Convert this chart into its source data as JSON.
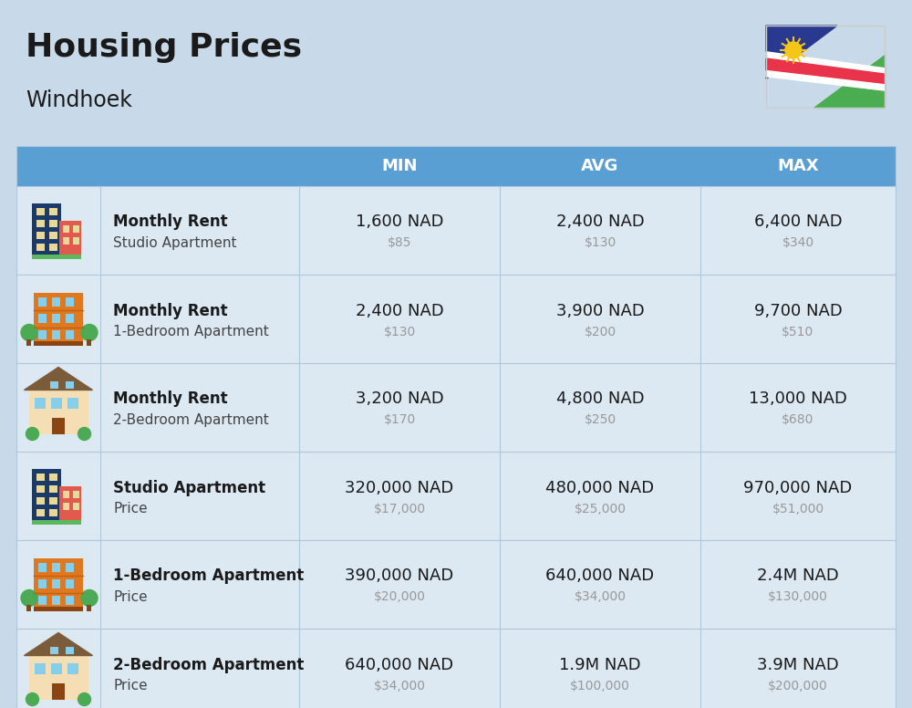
{
  "title": "Housing Prices",
  "subtitle": "Windhoek",
  "background_color": "#c8daea",
  "header_color": "#5a9fd4",
  "header_text_color": "#ffffff",
  "row_bg_light": "#dce8f2",
  "row_bg_white": "#ffffff",
  "divider_color": "#b0c8dc",
  "rows": [
    {
      "icon": "blue_red_building",
      "label_bold": "Monthly Rent",
      "label_sub": "Studio Apartment",
      "min_nad": "1,600 NAD",
      "min_usd": "$85",
      "avg_nad": "2,400 NAD",
      "avg_usd": "$130",
      "max_nad": "6,400 NAD",
      "max_usd": "$340"
    },
    {
      "icon": "orange_building",
      "label_bold": "Monthly Rent",
      "label_sub": "1-Bedroom Apartment",
      "min_nad": "2,400 NAD",
      "min_usd": "$130",
      "avg_nad": "3,900 NAD",
      "avg_usd": "$200",
      "max_nad": "9,700 NAD",
      "max_usd": "$510"
    },
    {
      "icon": "house_building",
      "label_bold": "Monthly Rent",
      "label_sub": "2-Bedroom Apartment",
      "min_nad": "3,200 NAD",
      "min_usd": "$170",
      "avg_nad": "4,800 NAD",
      "avg_usd": "$250",
      "max_nad": "13,000 NAD",
      "max_usd": "$680"
    },
    {
      "icon": "blue_red_building",
      "label_bold": "Studio Apartment",
      "label_sub": "Price",
      "min_nad": "320,000 NAD",
      "min_usd": "$17,000",
      "avg_nad": "480,000 NAD",
      "avg_usd": "$25,000",
      "max_nad": "970,000 NAD",
      "max_usd": "$51,000"
    },
    {
      "icon": "orange_building",
      "label_bold": "1-Bedroom Apartment",
      "label_sub": "Price",
      "min_nad": "390,000 NAD",
      "min_usd": "$20,000",
      "avg_nad": "640,000 NAD",
      "avg_usd": "$34,000",
      "max_nad": "2.4M NAD",
      "max_usd": "$130,000"
    },
    {
      "icon": "house_building",
      "label_bold": "2-Bedroom Apartment",
      "label_sub": "Price",
      "min_nad": "640,000 NAD",
      "min_usd": "$34,000",
      "avg_nad": "1.9M NAD",
      "avg_usd": "$100,000",
      "max_nad": "3.9M NAD",
      "max_usd": "$200,000"
    }
  ],
  "title_fontsize": 26,
  "subtitle_fontsize": 17,
  "header_fontsize": 13,
  "label_bold_fontsize": 12,
  "label_sub_fontsize": 11,
  "value_fontsize": 13,
  "usd_fontsize": 10
}
